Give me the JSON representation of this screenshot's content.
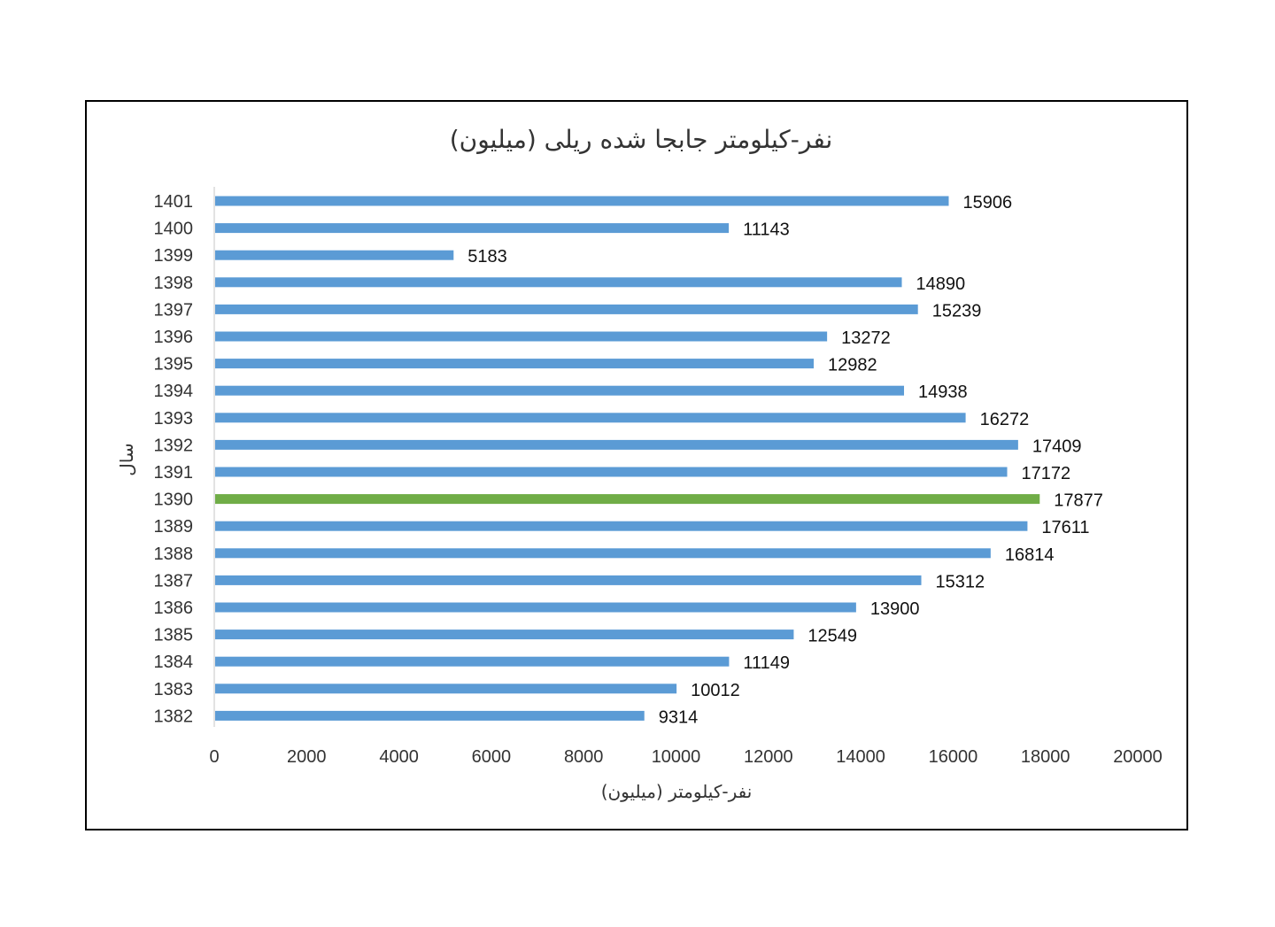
{
  "chart_data": {
    "type": "bar",
    "orientation": "horizontal",
    "title": "نفر-کیلومتر جابجا شده ریلی (میلیون)",
    "xlabel": "نفر-کیلومتر (میلیون)",
    "ylabel": "سال",
    "xlim": [
      0,
      20000
    ],
    "x_ticks": [
      "0",
      "2000",
      "4000",
      "6000",
      "8000",
      "10000",
      "12000",
      "14000",
      "16000",
      "18000",
      "20000"
    ],
    "categories": [
      "1382",
      "1383",
      "1384",
      "1385",
      "1386",
      "1387",
      "1388",
      "1389",
      "1390",
      "1391",
      "1392",
      "1393",
      "1394",
      "1395",
      "1396",
      "1397",
      "1398",
      "1399",
      "1400",
      "1401"
    ],
    "values": [
      9314,
      10012,
      11149,
      12549,
      13900,
      15312,
      16814,
      17611,
      17877,
      17172,
      17409,
      16272,
      14938,
      12982,
      13272,
      15239,
      14890,
      5183,
      11143,
      15906
    ],
    "data_labels": [
      "9314",
      "10012",
      "11149",
      "12549",
      "13900",
      "15312",
      "16814",
      "17611",
      "17877",
      "17172",
      "17409",
      "16272",
      "14938",
      "12982",
      "13272",
      "15239",
      "14890",
      "5183",
      "11143",
      "15906"
    ],
    "bar_color": "#5b9bd5",
    "highlight_category": "1390",
    "highlight_color": "#70ad47",
    "grid": false,
    "legend": "none"
  }
}
